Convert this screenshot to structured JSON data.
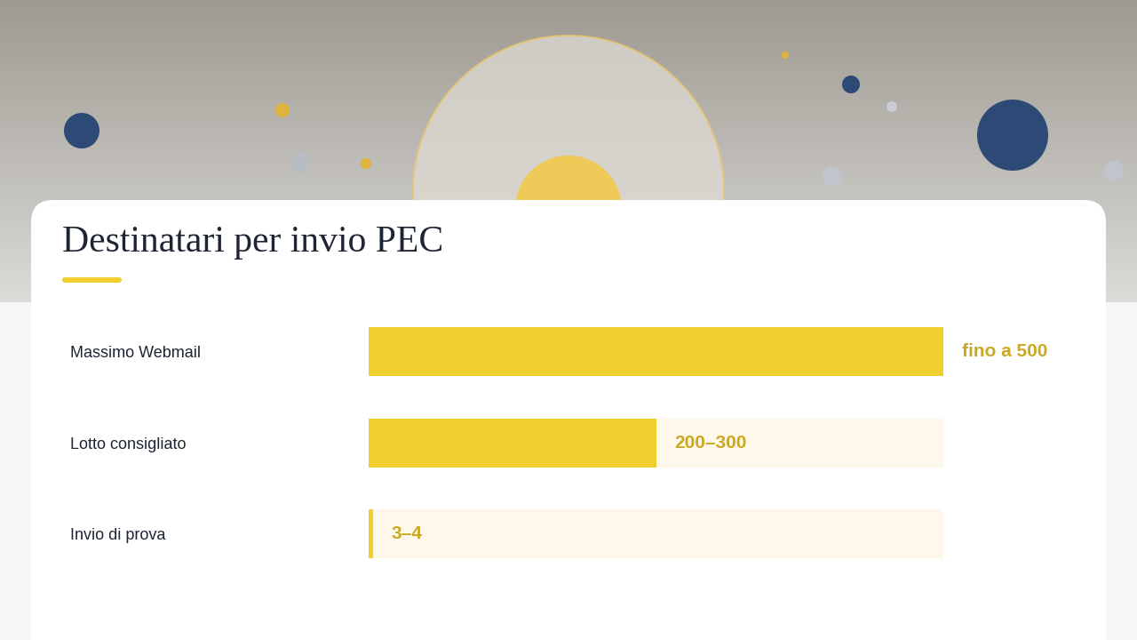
{
  "chart_data": {
    "type": "bar",
    "orientation": "horizontal",
    "title": "Destinatari per invio PEC",
    "categories": [
      "Massimo Webmail",
      "Lotto consigliato",
      "Invio di prova"
    ],
    "values": [
      500,
      250,
      3.5
    ],
    "value_labels": [
      "fino a 500",
      "200–300",
      "3–4"
    ],
    "xlim": [
      0,
      500
    ],
    "color": "#EFCF2E",
    "data_labels": true,
    "tick_labels": "y",
    "grid": false
  }
}
